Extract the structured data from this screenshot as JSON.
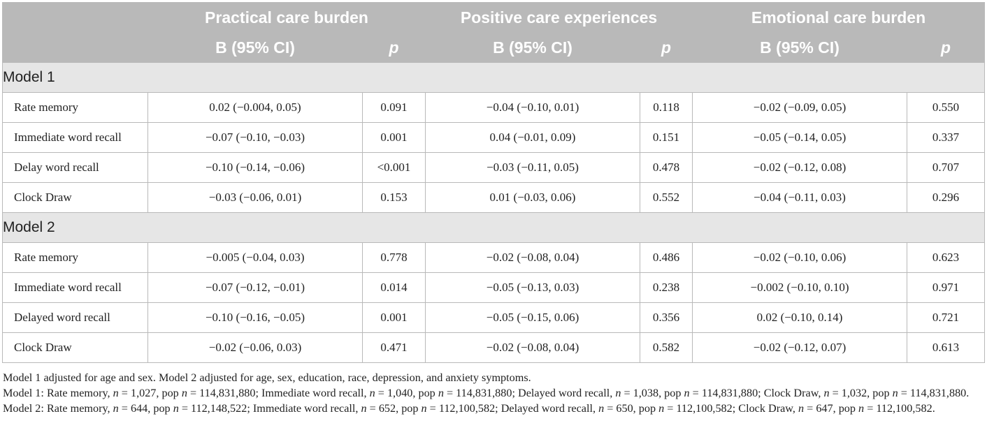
{
  "table": {
    "group_headers": [
      "Practical care burden",
      "Positive care experiences",
      "Emotional care burden"
    ],
    "sub_headers": {
      "b_ci": "B (95% CI)",
      "p": "p"
    },
    "models": [
      {
        "label": "Model 1",
        "rows": [
          {
            "name": "Rate memory",
            "pc_b": "0.02 (−0.004, 0.05)",
            "pc_p": "0.091",
            "pos_b": "−0.04 (−0.10, 0.01)",
            "pos_p": "0.118",
            "em_b": "−0.02 (−0.09, 0.05)",
            "em_p": "0.550"
          },
          {
            "name": "Immediate word recall",
            "pc_b": "−0.07 (−0.10, −0.03)",
            "pc_p": "0.001",
            "pos_b": "0.04 (−0.01, 0.09)",
            "pos_p": "0.151",
            "em_b": "−0.05 (−0.14, 0.05)",
            "em_p": "0.337"
          },
          {
            "name": "Delay word recall",
            "pc_b": "−0.10 (−0.14, −0.06)",
            "pc_p": "<0.001",
            "pos_b": "−0.03 (−0.11, 0.05)",
            "pos_p": "0.478",
            "em_b": "−0.02 (−0.12, 0.08)",
            "em_p": "0.707"
          },
          {
            "name": "Clock Draw",
            "pc_b": "−0.03 (−0.06, 0.01)",
            "pc_p": "0.153",
            "pos_b": "0.01 (−0.03, 0.06)",
            "pos_p": "0.552",
            "em_b": "−0.04 (−0.11, 0.03)",
            "em_p": "0.296"
          }
        ]
      },
      {
        "label": "Model 2",
        "rows": [
          {
            "name": "Rate memory",
            "pc_b": "−0.005 (−0.04, 0.03)",
            "pc_p": "0.778",
            "pos_b": "−0.02 (−0.08, 0.04)",
            "pos_p": "0.486",
            "em_b": "−0.02 (−0.10, 0.06)",
            "em_p": "0.623"
          },
          {
            "name": "Immediate word recall",
            "pc_b": "−0.07 (−0.12, −0.01)",
            "pc_p": "0.014",
            "pos_b": "−0.05 (−0.13, 0.03)",
            "pos_p": "0.238",
            "em_b": "−0.002 (−0.10, 0.10)",
            "em_p": "0.971"
          },
          {
            "name": "Delayed word recall",
            "pc_b": "−0.10 (−0.16, −0.05)",
            "pc_p": "0.001",
            "pos_b": "−0.05 (−0.15, 0.06)",
            "pos_p": "0.356",
            "em_b": "0.02 (−0.10, 0.14)",
            "em_p": "0.721"
          },
          {
            "name": "Clock Draw",
            "pc_b": "−0.02 (−0.06, 0.03)",
            "pc_p": "0.471",
            "pos_b": "−0.02 (−0.08, 0.04)",
            "pos_p": "0.582",
            "em_b": "−0.02 (−0.12, 0.07)",
            "em_p": "0.613"
          }
        ]
      }
    ]
  },
  "footnotes": {
    "line1": "Model 1 adjusted for age and sex. Model 2 adjusted for age, sex, education, race, depression, and anxiety symptoms.",
    "line2": "Model 1: Rate memory, n = 1,027, pop n = 114,831,880; Immediate word recall, n = 1,040, pop n = 114,831,880; Delayed word recall, n = 1,038, pop n = 114,831,880; Clock Draw, n = 1,032, pop n = 114,831,880. Model 2: Rate memory, n = 644, pop n = 112,148,522; Immediate word recall, n = 652, pop n = 112,100,582; Delayed word recall, n = 650, pop n = 112,100,582; Clock Draw, n = 647, pop n = 112,100,582."
  }
}
